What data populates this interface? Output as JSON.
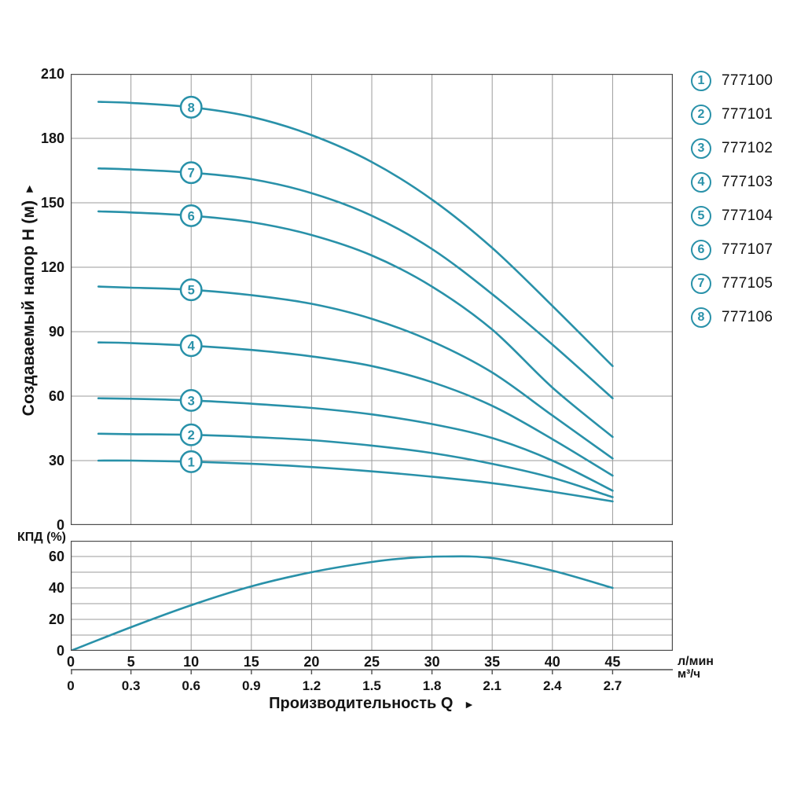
{
  "colors": {
    "curve": "#2991a9",
    "grid": "#9b9b9b",
    "frame": "#4d4d4d",
    "text": "#141414"
  },
  "chart_data": [
    {
      "name": "head-flow-curves",
      "type": "line",
      "ylabel": "Создаваемый напор H (м)",
      "ylabel_arrow": "►",
      "ylim": [
        0,
        210
      ],
      "yticks": [
        210,
        180,
        150,
        120,
        90,
        60,
        30,
        0
      ],
      "xlim_lmin": [
        0,
        50
      ],
      "xgrid_step": 5,
      "grid": true,
      "curve_label_at_x": 10,
      "x_lmin": [
        2.3,
        5,
        10,
        15,
        20,
        25,
        30,
        35,
        40,
        45
      ],
      "series": [
        {
          "num": "1",
          "model": "777100",
          "values": [
            30,
            30,
            29.5,
            28.5,
            27,
            25,
            22.5,
            19.5,
            15.5,
            11
          ]
        },
        {
          "num": "2",
          "model": "777101",
          "values": [
            42.5,
            42.3,
            42,
            41,
            39.5,
            37,
            33.5,
            28.5,
            22,
            13
          ]
        },
        {
          "num": "3",
          "model": "777102",
          "values": [
            59,
            58.8,
            58,
            56.5,
            54.5,
            51.5,
            47,
            40.5,
            30,
            16
          ]
        },
        {
          "num": "4",
          "model": "777103",
          "values": [
            85,
            84.7,
            83.5,
            81.5,
            78.5,
            74,
            66.5,
            55.5,
            40,
            23
          ]
        },
        {
          "num": "5",
          "model": "777104",
          "values": [
            111,
            110.5,
            109.5,
            107,
            103,
            96,
            85.5,
            71,
            51,
            31
          ]
        },
        {
          "num": "6",
          "model": "777107",
          "values": [
            146,
            145.5,
            144,
            141,
            135,
            125.5,
            111,
            91,
            64,
            41
          ]
        },
        {
          "num": "7",
          "model": "777105",
          "values": [
            166,
            165.5,
            164,
            161,
            154.5,
            144,
            128.5,
            107.5,
            84,
            59
          ]
        },
        {
          "num": "8",
          "model": "777106",
          "values": [
            197,
            196.5,
            194.5,
            190,
            181.5,
            169,
            151.5,
            129,
            102,
            74
          ]
        }
      ]
    },
    {
      "name": "efficiency-curve",
      "type": "line",
      "ylabel": "КПД (%)",
      "ylim": [
        0,
        70
      ],
      "yticks": [
        60,
        40,
        20,
        0
      ],
      "ygrid_step": 10,
      "grid": true,
      "x_lmin": [
        0,
        5,
        10,
        15,
        20,
        25,
        28,
        31,
        35,
        40,
        45
      ],
      "values": [
        0,
        15,
        29,
        41,
        50,
        56.5,
        59,
        60,
        59,
        51,
        40
      ]
    }
  ],
  "axes": {
    "flow_primary": {
      "unit": "л/мин",
      "ticks": [
        "0",
        "5",
        "10",
        "15",
        "20",
        "25",
        "30",
        "35",
        "40",
        "45"
      ]
    },
    "flow_secondary": {
      "unit": "м³/ч",
      "ticks": [
        "0",
        "0.3",
        "0.6",
        "0.9",
        "1.2",
        "1.5",
        "1.8",
        "2.1",
        "2.4",
        "2.7"
      ]
    },
    "x_title": "Производительность Q",
    "x_title_arrow": "►"
  }
}
